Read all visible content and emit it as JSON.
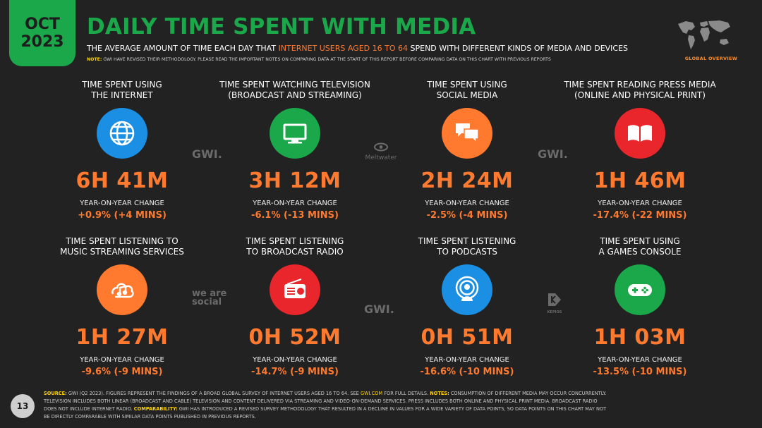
{
  "header": {
    "month": "OCT",
    "year": "2023",
    "title": "DAILY TIME SPENT WITH MEDIA",
    "subtitle_pre": "THE AVERAGE AMOUNT OF TIME EACH DAY THAT ",
    "subtitle_highlight": "INTERNET USERS AGED 16 TO 64",
    "subtitle_post": " SPEND WITH DIFFERENT KINDS OF MEDIA AND DEVICES",
    "note_label": "NOTE:",
    "note_text": " GWI HAVE REVISED THEIR METHODOLOGY. PLEASE READ THE IMPORTANT NOTES ON COMPARING DATA AT THE START OF THIS REPORT BEFORE COMPARING DATA ON THIS CHART WITH PREVIOUS REPORTS",
    "overview_label": "GLOBAL OVERVIEW"
  },
  "colors": {
    "green": "#1aa84b",
    "orange": "#ff7a2f",
    "blue": "#1a8fe3",
    "red": "#e8262b",
    "background": "#222222"
  },
  "cards": [
    {
      "label1": "TIME SPENT USING",
      "label2": "THE INTERNET",
      "icon": "globe-icon",
      "value": "6H 41M",
      "yoy_label": "YEAR-ON-YEAR CHANGE",
      "yoy": "+0.9% (+4 MINS)"
    },
    {
      "label1": "TIME SPENT WATCHING TELEVISION",
      "label2": "(BROADCAST AND STREAMING)",
      "icon": "television-icon",
      "value": "3H 12M",
      "yoy_label": "YEAR-ON-YEAR CHANGE",
      "yoy": "-6.1% (-13 MINS)"
    },
    {
      "label1": "TIME SPENT USING",
      "label2": "SOCIAL MEDIA",
      "icon": "chat-bubbles-icon",
      "value": "2H 24M",
      "yoy_label": "YEAR-ON-YEAR CHANGE",
      "yoy": "-2.5% (-4 MINS)"
    },
    {
      "label1": "TIME SPENT READING PRESS MEDIA",
      "label2": "(ONLINE AND PHYSICAL PRINT)",
      "icon": "open-book-icon",
      "value": "1H 46M",
      "yoy_label": "YEAR-ON-YEAR CHANGE",
      "yoy": "-17.4% (-22 MINS)"
    },
    {
      "label1": "TIME SPENT LISTENING TO",
      "label2": "MUSIC STREAMING SERVICES",
      "icon": "music-cloud-icon",
      "value": "1H 27M",
      "yoy_label": "YEAR-ON-YEAR CHANGE",
      "yoy": "-9.6% (-9 MINS)"
    },
    {
      "label1": "TIME SPENT LISTENING",
      "label2": "TO BROADCAST RADIO",
      "icon": "radio-icon",
      "value": "0H 52M",
      "yoy_label": "YEAR-ON-YEAR CHANGE",
      "yoy": "-14.7% (-9 MINS)"
    },
    {
      "label1": "TIME SPENT LISTENING",
      "label2": "TO PODCASTS",
      "icon": "podcast-icon",
      "value": "0H 51M",
      "yoy_label": "YEAR-ON-YEAR CHANGE",
      "yoy": "-16.6% (-10 MINS)"
    },
    {
      "label1": "TIME SPENT USING",
      "label2": "A GAMES CONSOLE",
      "icon": "gamepad-icon",
      "value": "1H 03M",
      "yoy_label": "YEAR-ON-YEAR CHANGE",
      "yoy": "-13.5% (-10 MINS)"
    }
  ],
  "watermarks": {
    "gwi": "GWI.",
    "meltwater": "Meltwater",
    "we_are_social": "we are social",
    "kepios": "KEPIOS"
  },
  "footer": {
    "page_number": "13",
    "source_label": "SOURCE:",
    "source_text_1": " GWI (Q2 2023). FIGURES REPRESENT THE FINDINGS OF A BROAD GLOBAL SURVEY OF INTERNET USERS AGED 16 TO 64. SEE ",
    "source_link": "GWI.COM",
    "source_text_2": " FOR FULL DETAILS. ",
    "notes_label": "NOTES:",
    "notes_text": " CONSUMPTION OF DIFFERENT MEDIA MAY OCCUR CONCURRENTLY. TELEVISION INCLUDES BOTH LINEAR (BROADCAST AND CABLE) TELEVISION AND CONTENT DELIVERED VIA STREAMING AND VIDEO-ON-DEMAND SERVICES. PRESS INCLUDES BOTH ONLINE AND PHYSICAL PRINT MEDIA. BROADCAST RADIO DOES NOT INCLUDE INTERNET RADIO. ",
    "comparability_label": "COMPARABILITY:",
    "comparability_text": " GWI HAS INTRODUCED A REVISED SURVEY METHODOLOGY THAT RESULTED IN A DECLINE IN VALUES FOR A WIDE VARIETY OF DATA POINTS, SO DATA POINTS ON THIS CHART MAY NOT BE DIRECTLY COMPARABLE WITH SIMILAR DATA POINTS PUBLISHED IN PREVIOUS REPORTS."
  }
}
